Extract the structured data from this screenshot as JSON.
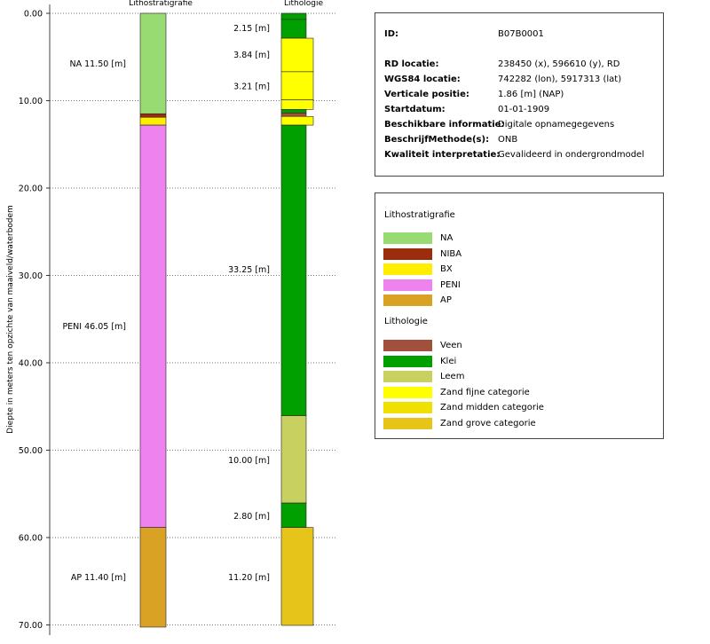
{
  "chart_data": {
    "type": "borehole-log",
    "ylabel": "Diepte in meters ten opzichte van maaiveld/waterbodem",
    "ylim": [
      0,
      70
    ],
    "yticks": [
      "0.00",
      "10.00",
      "20.00",
      "30.00",
      "40.00",
      "50.00",
      "60.00",
      "70.00"
    ],
    "grid": true,
    "columns": [
      {
        "title": "Lithostratigrafie",
        "layers": [
          {
            "top": 0.0,
            "bottom": 11.5,
            "unit": "NA"
          },
          {
            "top": 11.5,
            "bottom": 11.9,
            "unit": "NIBA"
          },
          {
            "top": 11.9,
            "bottom": 12.8,
            "unit": "BX"
          },
          {
            "top": 12.8,
            "bottom": 58.85,
            "unit": "PENI"
          },
          {
            "top": 58.85,
            "bottom": 70.25,
            "unit": "AP"
          }
        ],
        "labels": [
          {
            "text": "NA 11.50 [m]",
            "depth": 5.75
          },
          {
            "text": "PENI 46.05 [m]",
            "depth": 35.8
          },
          {
            "text": "AP 11.40 [m]",
            "depth": 64.5
          }
        ]
      },
      {
        "title": "Lithologie",
        "layers": [
          {
            "top": 0.0,
            "bottom": 0.7,
            "unit": "Klei"
          },
          {
            "top": 0.7,
            "bottom": 2.85,
            "unit": "Klei"
          },
          {
            "top": 2.85,
            "bottom": 6.69,
            "unit": "Zand fijne categorie"
          },
          {
            "top": 6.69,
            "bottom": 9.9,
            "unit": "Zand fijne categorie"
          },
          {
            "top": 9.9,
            "bottom": 11.0,
            "unit": "Zand fijne categorie"
          },
          {
            "top": 11.0,
            "bottom": 11.4,
            "unit": "Klei"
          },
          {
            "top": 11.4,
            "bottom": 11.8,
            "unit": "Veen"
          },
          {
            "top": 11.8,
            "bottom": 12.8,
            "unit": "Zand fijne categorie"
          },
          {
            "top": 12.8,
            "bottom": 46.05,
            "unit": "Klei"
          },
          {
            "top": 46.05,
            "bottom": 56.05,
            "unit": "Leem"
          },
          {
            "top": 56.05,
            "bottom": 58.85,
            "unit": "Klei"
          },
          {
            "top": 58.85,
            "bottom": 70.05,
            "unit": "Zand grove categorie"
          }
        ],
        "labels": [
          {
            "text": "2.15 [m]",
            "depth": 1.7
          },
          {
            "text": "3.84 [m]",
            "depth": 4.7
          },
          {
            "text": "3.21 [m]",
            "depth": 8.3
          },
          {
            "text": "33.25 [m]",
            "depth": 29.3
          },
          {
            "text": "10.00 [m]",
            "depth": 51.1
          },
          {
            "text": "2.80 [m]",
            "depth": 57.5
          },
          {
            "text": "11.20 [m]",
            "depth": 64.5
          }
        ]
      }
    ]
  },
  "colors": {
    "NA": "#97db72",
    "NIBA": "#9b2d0e",
    "BX": "#ffee00",
    "PENI": "#ee82ee",
    "AP": "#daa225",
    "Veen": "#a0503c",
    "Klei": "#00a000",
    "Leem": "#c8d060",
    "Zand fijne categorie": "#ffff00",
    "Zand midden categorie": "#f0e000",
    "Zand grove categorie": "#e6c41a"
  },
  "info": [
    {
      "key": "ID:",
      "value": "B07B0001"
    },
    {
      "key": "RD locatie:",
      "value": "238450 (x), 596610 (y), RD"
    },
    {
      "key": "WGS84 locatie:",
      "value": "742282 (lon), 5917313 (lat)"
    },
    {
      "key": "Verticale positie:",
      "value": "1.86 [m] (NAP)"
    },
    {
      "key": "Startdatum:",
      "value": "01-01-1909"
    },
    {
      "key": "Beschikbare informatie:",
      "value": "Digitale opnamegegevens"
    },
    {
      "key": "BeschrijfMethode(s):",
      "value": "ONB"
    },
    {
      "key": "Kwaliteit interpretatie:",
      "value": "Gevalideerd in ondergrondmodel"
    }
  ],
  "legend": {
    "litho_title": "Lithostratigrafie",
    "litho_items": [
      "NA",
      "NIBA",
      "BX",
      "PENI",
      "AP"
    ],
    "lithology_title": "Lithologie",
    "lithology_items": [
      "Veen",
      "Klei",
      "Leem",
      "Zand fijne categorie",
      "Zand midden categorie",
      "Zand grove categorie"
    ]
  }
}
